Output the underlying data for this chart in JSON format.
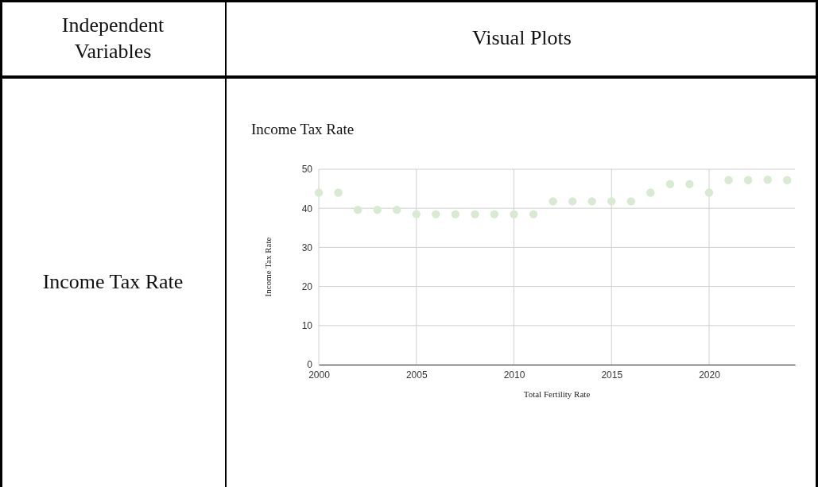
{
  "chart_data": {
    "type": "scatter",
    "title": "Income Tax Rate",
    "xlabel": "Total Fertility Rate",
    "ylabel": "Income Tax Rate",
    "annotations": [
      "Independent Variables",
      "Visual Plots",
      "Income Tax Rate"
    ],
    "x": [
      2000,
      2001,
      2002,
      2003,
      2004,
      2005,
      2006,
      2007,
      2008,
      2009,
      2010,
      2011,
      2012,
      2013,
      2014,
      2015,
      2016,
      2017,
      2018,
      2019,
      2020,
      2021,
      2022,
      2023,
      2024
    ],
    "series": [
      {
        "color": "#d9ead3",
        "values": [
          44,
          44,
          39.6,
          39.6,
          39.6,
          38.5,
          38.5,
          38.5,
          38.5,
          38.5,
          38.5,
          38.5,
          41.8,
          41.8,
          41.8,
          41.8,
          41.8,
          44,
          46.2,
          46.2,
          44,
          47.2,
          47.2,
          47.3,
          47.2
        ]
      }
    ],
    "xlim": [
      2000,
      2024.4
    ],
    "xticks": [
      2000,
      2005,
      2010,
      2015,
      2020
    ],
    "ylim": [
      0,
      50
    ],
    "yticks": [
      0,
      10,
      20,
      30,
      40,
      50
    ],
    "grid": true,
    "marker": "circle"
  }
}
